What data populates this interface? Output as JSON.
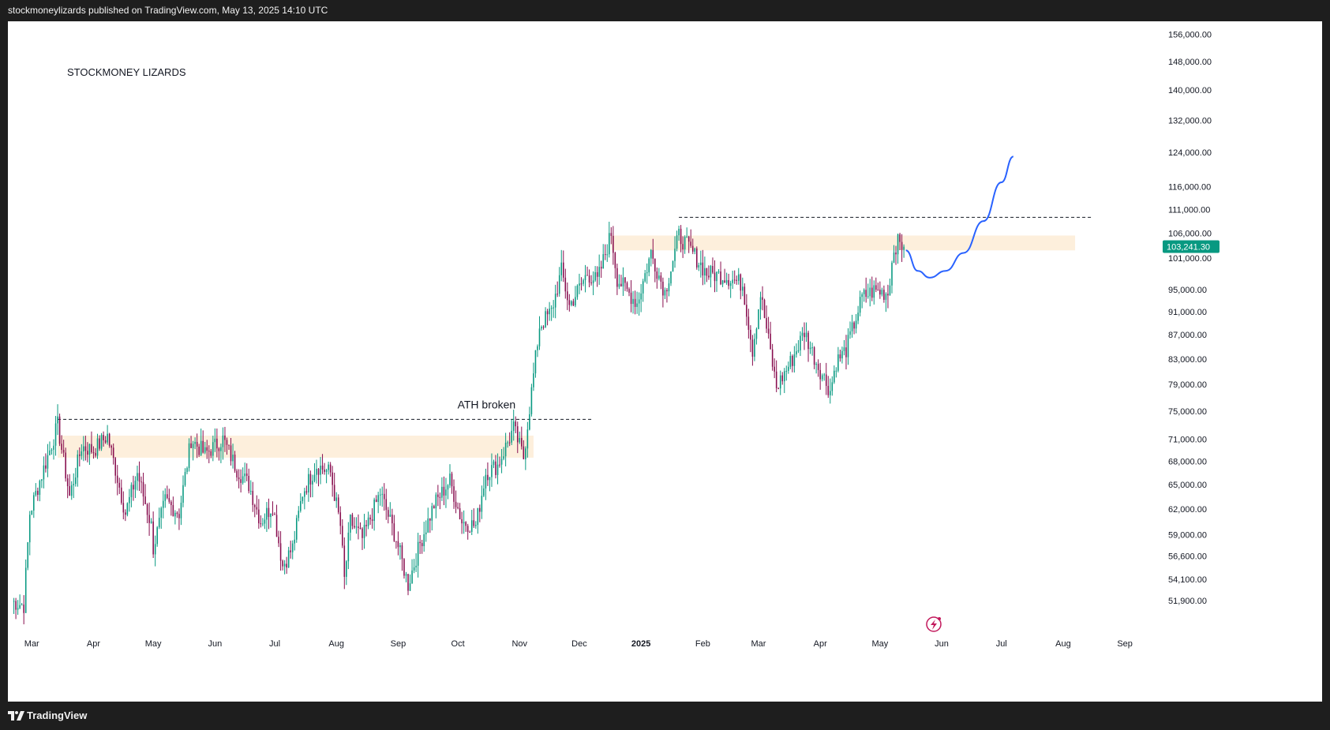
{
  "header": {
    "publisher_line": "stockmoneylizards published on TradingView.com, May 13, 2025 14:10 UTC"
  },
  "footer": {
    "brand": "TradingView"
  },
  "colors": {
    "up": "#089981",
    "down": "#880e4f",
    "zone": "#fdefdc",
    "projection": "#2962ff",
    "price_badge": "#089981"
  },
  "chart_data": {
    "type": "candlestick",
    "title": "STOCKMONEY LIZARDS",
    "y_scale": "log",
    "ylim": [
      48500,
      160000
    ],
    "xlim": [
      "2024-02-18",
      "2025-09-18"
    ],
    "y_ticks": [
      "156,000.00",
      "148,000.00",
      "140,000.00",
      "132,000.00",
      "124,000.00",
      "116,000.00",
      "111,000.00",
      "106,000.00",
      "101,000.00",
      "95,000.00",
      "91,000.00",
      "87,000.00",
      "83,000.00",
      "79,000.00",
      "75,000.00",
      "71,000.00",
      "68,000.00",
      "65,000.00",
      "62,000.00",
      "59,000.00",
      "56,600.00",
      "54,100.00",
      "51,900.00"
    ],
    "x_ticks": [
      {
        "label": "Mar",
        "date": "2024-03-01"
      },
      {
        "label": "Apr",
        "date": "2024-04-01"
      },
      {
        "label": "May",
        "date": "2024-05-01"
      },
      {
        "label": "Jun",
        "date": "2024-06-01"
      },
      {
        "label": "Jul",
        "date": "2024-07-01"
      },
      {
        "label": "Aug",
        "date": "2024-08-01"
      },
      {
        "label": "Sep",
        "date": "2024-09-01"
      },
      {
        "label": "Oct",
        "date": "2024-10-01"
      },
      {
        "label": "Nov",
        "date": "2024-11-01"
      },
      {
        "label": "Dec",
        "date": "2024-12-01"
      },
      {
        "label": "2025",
        "date": "2025-01-01"
      },
      {
        "label": "Feb",
        "date": "2025-02-01"
      },
      {
        "label": "Mar",
        "date": "2025-03-01"
      },
      {
        "label": "Apr",
        "date": "2025-04-01"
      },
      {
        "label": "May",
        "date": "2025-05-01"
      },
      {
        "label": "Jun",
        "date": "2025-06-01"
      },
      {
        "label": "Jul",
        "date": "2025-07-01"
      },
      {
        "label": "Aug",
        "date": "2025-08-01"
      },
      {
        "label": "Sep",
        "date": "2025-09-01"
      }
    ],
    "close_path": [
      {
        "date": "2024-02-20",
        "close": 51800
      },
      {
        "date": "2024-02-26",
        "close": 51400
      },
      {
        "date": "2024-02-29",
        "close": 61500
      },
      {
        "date": "2024-03-05",
        "close": 65500
      },
      {
        "date": "2024-03-10",
        "close": 69500
      },
      {
        "date": "2024-03-14",
        "close": 73000
      },
      {
        "date": "2024-03-20",
        "close": 63500
      },
      {
        "date": "2024-03-26",
        "close": 70000
      },
      {
        "date": "2024-04-01",
        "close": 69500
      },
      {
        "date": "2024-04-08",
        "close": 71500
      },
      {
        "date": "2024-04-12",
        "close": 67000
      },
      {
        "date": "2024-04-17",
        "close": 61500
      },
      {
        "date": "2024-04-23",
        "close": 66500
      },
      {
        "date": "2024-04-30",
        "close": 60000
      },
      {
        "date": "2024-05-01",
        "close": 57500
      },
      {
        "date": "2024-05-07",
        "close": 63000
      },
      {
        "date": "2024-05-14",
        "close": 61500
      },
      {
        "date": "2024-05-20",
        "close": 71000
      },
      {
        "date": "2024-05-27",
        "close": 69000
      },
      {
        "date": "2024-06-05",
        "close": 71000
      },
      {
        "date": "2024-06-12",
        "close": 67000
      },
      {
        "date": "2024-06-18",
        "close": 65000
      },
      {
        "date": "2024-06-24",
        "close": 60500
      },
      {
        "date": "2024-06-30",
        "close": 62500
      },
      {
        "date": "2024-07-05",
        "close": 55500
      },
      {
        "date": "2024-07-10",
        "close": 57500
      },
      {
        "date": "2024-07-15",
        "close": 64000
      },
      {
        "date": "2024-07-22",
        "close": 67500
      },
      {
        "date": "2024-07-29",
        "close": 66500
      },
      {
        "date": "2024-08-03",
        "close": 60000
      },
      {
        "date": "2024-08-05",
        "close": 54000
      },
      {
        "date": "2024-08-08",
        "close": 60500
      },
      {
        "date": "2024-08-14",
        "close": 58500
      },
      {
        "date": "2024-08-23",
        "close": 64000
      },
      {
        "date": "2024-08-31",
        "close": 58500
      },
      {
        "date": "2024-09-06",
        "close": 53500
      },
      {
        "date": "2024-09-12",
        "close": 58000
      },
      {
        "date": "2024-09-19",
        "close": 62500
      },
      {
        "date": "2024-09-27",
        "close": 65500
      },
      {
        "date": "2024-10-03",
        "close": 60500
      },
      {
        "date": "2024-10-10",
        "close": 60000
      },
      {
        "date": "2024-10-15",
        "close": 66500
      },
      {
        "date": "2024-10-21",
        "close": 67500
      },
      {
        "date": "2024-10-29",
        "close": 72500
      },
      {
        "date": "2024-11-03",
        "close": 68500
      },
      {
        "date": "2024-11-06",
        "close": 75500
      },
      {
        "date": "2024-11-11",
        "close": 88500
      },
      {
        "date": "2024-11-17",
        "close": 91000
      },
      {
        "date": "2024-11-22",
        "close": 98500
      },
      {
        "date": "2024-11-26",
        "close": 92000
      },
      {
        "date": "2024-12-05",
        "close": 98000
      },
      {
        "date": "2024-12-10",
        "close": 96500
      },
      {
        "date": "2024-12-17",
        "close": 106000
      },
      {
        "date": "2024-12-20",
        "close": 97000
      },
      {
        "date": "2024-12-30",
        "close": 92500
      },
      {
        "date": "2025-01-06",
        "close": 102000
      },
      {
        "date": "2025-01-13",
        "close": 94500
      },
      {
        "date": "2025-01-20",
        "close": 105500
      },
      {
        "date": "2025-01-27",
        "close": 102000
      },
      {
        "date": "2025-02-03",
        "close": 98000
      },
      {
        "date": "2025-02-12",
        "close": 97500
      },
      {
        "date": "2025-02-21",
        "close": 96000
      },
      {
        "date": "2025-02-26",
        "close": 84500
      },
      {
        "date": "2025-03-02",
        "close": 94200
      },
      {
        "date": "2025-03-10",
        "close": 78500
      },
      {
        "date": "2025-03-18",
        "close": 83000
      },
      {
        "date": "2025-03-24",
        "close": 87500
      },
      {
        "date": "2025-03-30",
        "close": 82500
      },
      {
        "date": "2025-04-06",
        "close": 78000
      },
      {
        "date": "2025-04-09",
        "close": 82500
      },
      {
        "date": "2025-04-14",
        "close": 84500
      },
      {
        "date": "2025-04-22",
        "close": 93500
      },
      {
        "date": "2025-04-28",
        "close": 94800
      },
      {
        "date": "2025-05-05",
        "close": 94300
      },
      {
        "date": "2025-05-08",
        "close": 103000
      },
      {
        "date": "2025-05-10",
        "close": 104000
      },
      {
        "date": "2025-05-13",
        "close": 103241.3
      }
    ],
    "current_price": {
      "label": "103,241.30",
      "value": 103241.3
    },
    "zones": [
      {
        "from": "2024-03-14",
        "to": "2024-11-08",
        "low": 68500,
        "high": 71500
      },
      {
        "from": "2024-12-17",
        "to": "2025-08-07",
        "low": 102500,
        "high": 105500
      }
    ],
    "levels": [
      {
        "from": "2024-03-14",
        "to": "2024-12-07",
        "value": 73800
      },
      {
        "from": "2025-01-20",
        "to": "2025-08-15",
        "value": 109300
      }
    ],
    "annotations": [
      {
        "text": "ATH broken",
        "date": "2024-10-30",
        "value": 75400
      }
    ],
    "projection": [
      {
        "date": "2025-05-14",
        "value": 102500
      },
      {
        "date": "2025-05-20",
        "value": 98500
      },
      {
        "date": "2025-05-26",
        "value": 97200
      },
      {
        "date": "2025-06-03",
        "value": 98500
      },
      {
        "date": "2025-06-12",
        "value": 102000
      },
      {
        "date": "2025-06-22",
        "value": 108500
      },
      {
        "date": "2025-07-01",
        "value": 117000
      },
      {
        "date": "2025-07-07",
        "value": 123000
      }
    ]
  }
}
